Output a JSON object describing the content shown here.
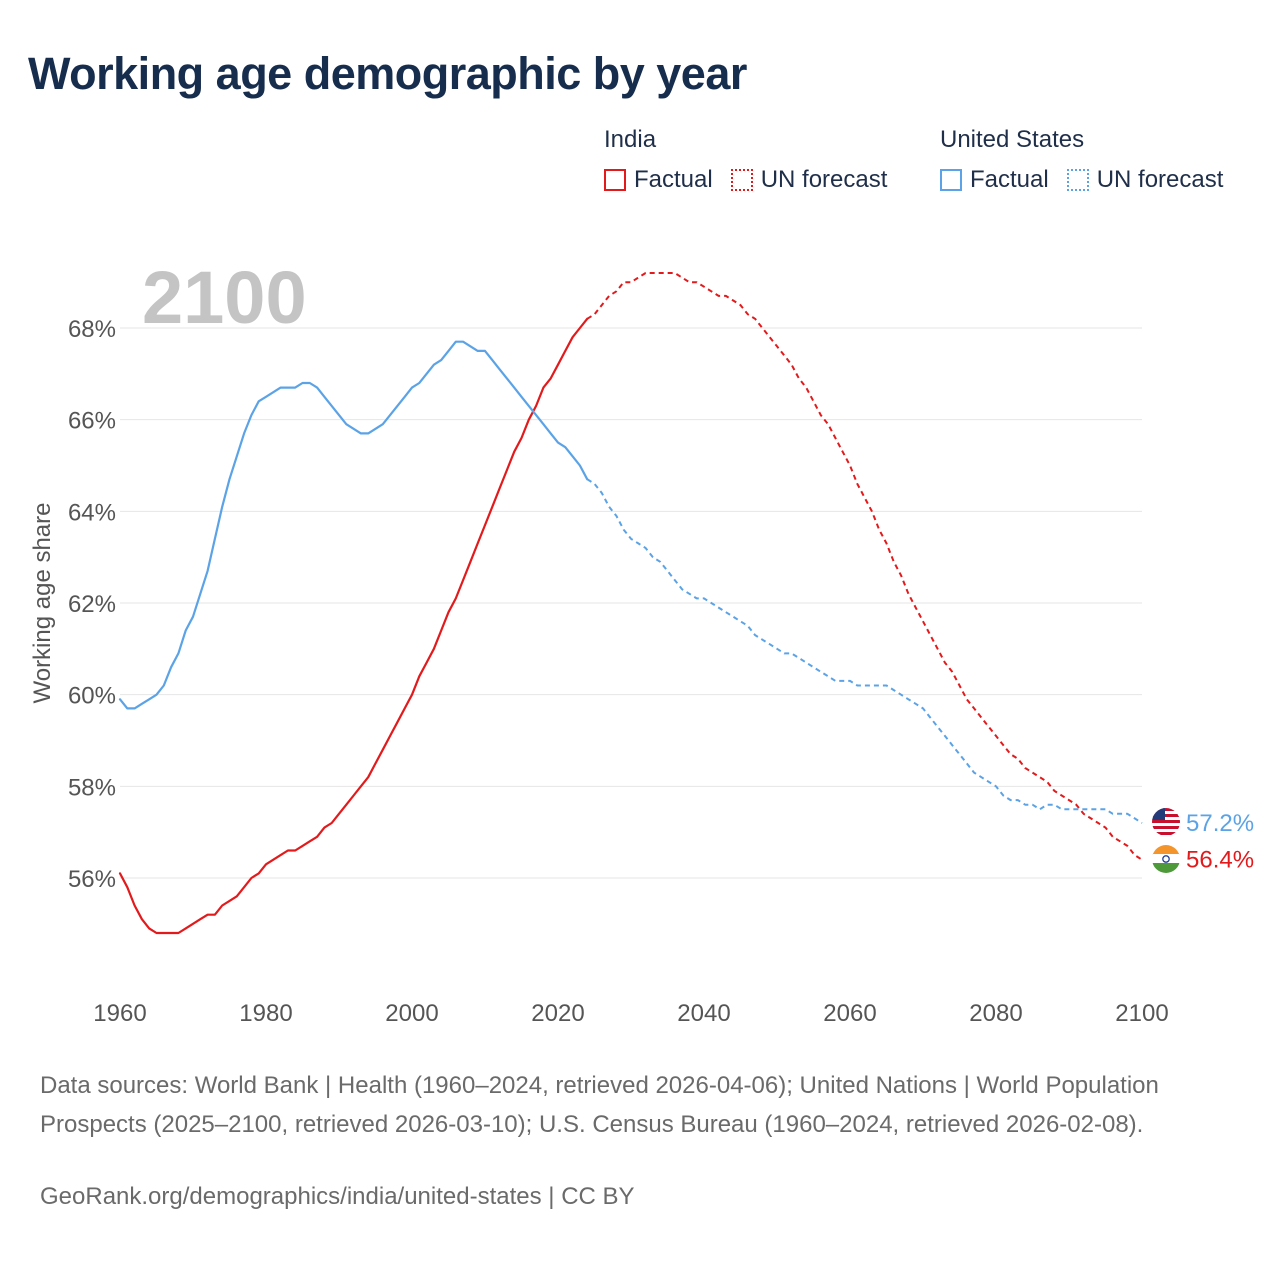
{
  "title": "Working age demographic by year",
  "legend": {
    "groups": [
      {
        "name": "India",
        "factual_label": "Factual",
        "forecast_label": "UN forecast",
        "color": "#e31a1c"
      },
      {
        "name": "United States",
        "factual_label": "Factual",
        "forecast_label": "UN forecast",
        "color": "#5ba3e6"
      }
    ]
  },
  "year_watermark": "2100",
  "colors": {
    "india": "#e31a1c",
    "usa": "#5ba3e6",
    "grid": "#e6e6e6",
    "axis_text": "#555555",
    "watermark": "#c4c4c4"
  },
  "chart_data": {
    "type": "line",
    "title": "Working age demographic by year",
    "xlabel": "",
    "ylabel": "Working age share",
    "xlim": [
      1960,
      2100
    ],
    "ylim": [
      54,
      69.5
    ],
    "x_ticks": [
      1960,
      1980,
      2000,
      2020,
      2040,
      2060,
      2080,
      2100
    ],
    "x_tick_labels": [
      "1960",
      "1980",
      "2000",
      "2020",
      "2040",
      "2060",
      "2080",
      "2100"
    ],
    "y_ticks": [
      56,
      58,
      60,
      62,
      64,
      66,
      68
    ],
    "y_tick_labels": [
      "56%",
      "58%",
      "60%",
      "62%",
      "64%",
      "66%",
      "68%"
    ],
    "forecast_start": 2024,
    "series": [
      {
        "name": "India",
        "key": "india",
        "end_label": "56.4%",
        "x": [
          1960,
          1961,
          1962,
          1963,
          1964,
          1965,
          1966,
          1967,
          1968,
          1969,
          1970,
          1971,
          1972,
          1973,
          1974,
          1975,
          1976,
          1977,
          1978,
          1979,
          1980,
          1981,
          1982,
          1983,
          1984,
          1985,
          1986,
          1987,
          1988,
          1989,
          1990,
          1991,
          1992,
          1993,
          1994,
          1995,
          1996,
          1997,
          1998,
          1999,
          2000,
          2001,
          2002,
          2003,
          2004,
          2005,
          2006,
          2007,
          2008,
          2009,
          2010,
          2011,
          2012,
          2013,
          2014,
          2015,
          2016,
          2017,
          2018,
          2019,
          2020,
          2021,
          2022,
          2023,
          2024,
          2025,
          2026,
          2027,
          2028,
          2029,
          2030,
          2031,
          2032,
          2033,
          2034,
          2035,
          2036,
          2037,
          2038,
          2039,
          2040,
          2041,
          2042,
          2043,
          2044,
          2045,
          2046,
          2047,
          2048,
          2049,
          2050,
          2051,
          2052,
          2053,
          2054,
          2055,
          2056,
          2057,
          2058,
          2059,
          2060,
          2061,
          2062,
          2063,
          2064,
          2065,
          2066,
          2067,
          2068,
          2069,
          2070,
          2071,
          2072,
          2073,
          2074,
          2075,
          2076,
          2077,
          2078,
          2079,
          2080,
          2081,
          2082,
          2083,
          2084,
          2085,
          2086,
          2087,
          2088,
          2089,
          2090,
          2091,
          2092,
          2093,
          2094,
          2095,
          2096,
          2097,
          2098,
          2099,
          2100
        ],
        "values": [
          56.1,
          55.8,
          55.4,
          55.1,
          54.9,
          54.8,
          54.8,
          54.8,
          54.8,
          54.9,
          55.0,
          55.1,
          55.2,
          55.2,
          55.4,
          55.5,
          55.6,
          55.8,
          56.0,
          56.1,
          56.3,
          56.4,
          56.5,
          56.6,
          56.6,
          56.7,
          56.8,
          56.9,
          57.1,
          57.2,
          57.4,
          57.6,
          57.8,
          58.0,
          58.2,
          58.5,
          58.8,
          59.1,
          59.4,
          59.7,
          60.0,
          60.4,
          60.7,
          61.0,
          61.4,
          61.8,
          62.1,
          62.5,
          62.9,
          63.3,
          63.7,
          64.1,
          64.5,
          64.9,
          65.3,
          65.6,
          66.0,
          66.3,
          66.7,
          66.9,
          67.2,
          67.5,
          67.8,
          68.0,
          68.2,
          68.3,
          68.5,
          68.7,
          68.8,
          69.0,
          69.0,
          69.1,
          69.2,
          69.2,
          69.2,
          69.2,
          69.2,
          69.1,
          69.0,
          69.0,
          68.9,
          68.8,
          68.7,
          68.7,
          68.6,
          68.5,
          68.3,
          68.2,
          68.0,
          67.8,
          67.6,
          67.4,
          67.2,
          66.9,
          66.7,
          66.4,
          66.1,
          65.9,
          65.6,
          65.3,
          65.0,
          64.6,
          64.3,
          64.0,
          63.6,
          63.3,
          62.9,
          62.6,
          62.2,
          61.9,
          61.6,
          61.3,
          61.0,
          60.7,
          60.5,
          60.2,
          59.9,
          59.7,
          59.5,
          59.3,
          59.1,
          58.9,
          58.7,
          58.6,
          58.4,
          58.3,
          58.2,
          58.1,
          57.9,
          57.8,
          57.7,
          57.6,
          57.4,
          57.3,
          57.2,
          57.1,
          56.9,
          56.8,
          56.7,
          56.5,
          56.4
        ]
      },
      {
        "name": "United States",
        "key": "usa",
        "end_label": "57.2%",
        "x": [
          1960,
          1961,
          1962,
          1963,
          1964,
          1965,
          1966,
          1967,
          1968,
          1969,
          1970,
          1971,
          1972,
          1973,
          1974,
          1975,
          1976,
          1977,
          1978,
          1979,
          1980,
          1981,
          1982,
          1983,
          1984,
          1985,
          1986,
          1987,
          1988,
          1989,
          1990,
          1991,
          1992,
          1993,
          1994,
          1995,
          1996,
          1997,
          1998,
          1999,
          2000,
          2001,
          2002,
          2003,
          2004,
          2005,
          2006,
          2007,
          2008,
          2009,
          2010,
          2011,
          2012,
          2013,
          2014,
          2015,
          2016,
          2017,
          2018,
          2019,
          2020,
          2021,
          2022,
          2023,
          2024,
          2025,
          2026,
          2027,
          2028,
          2029,
          2030,
          2031,
          2032,
          2033,
          2034,
          2035,
          2036,
          2037,
          2038,
          2039,
          2040,
          2041,
          2042,
          2043,
          2044,
          2045,
          2046,
          2047,
          2048,
          2049,
          2050,
          2051,
          2052,
          2053,
          2054,
          2055,
          2056,
          2057,
          2058,
          2059,
          2060,
          2061,
          2062,
          2063,
          2064,
          2065,
          2066,
          2067,
          2068,
          2069,
          2070,
          2071,
          2072,
          2073,
          2074,
          2075,
          2076,
          2077,
          2078,
          2079,
          2080,
          2081,
          2082,
          2083,
          2084,
          2085,
          2086,
          2087,
          2088,
          2089,
          2090,
          2091,
          2092,
          2093,
          2094,
          2095,
          2096,
          2097,
          2098,
          2099,
          2100
        ],
        "values": [
          59.9,
          59.7,
          59.7,
          59.8,
          59.9,
          60.0,
          60.2,
          60.6,
          60.9,
          61.4,
          61.7,
          62.2,
          62.7,
          63.4,
          64.1,
          64.7,
          65.2,
          65.7,
          66.1,
          66.4,
          66.5,
          66.6,
          66.7,
          66.7,
          66.7,
          66.8,
          66.8,
          66.7,
          66.5,
          66.3,
          66.1,
          65.9,
          65.8,
          65.7,
          65.7,
          65.8,
          65.9,
          66.1,
          66.3,
          66.5,
          66.7,
          66.8,
          67.0,
          67.2,
          67.3,
          67.5,
          67.7,
          67.7,
          67.6,
          67.5,
          67.5,
          67.3,
          67.1,
          66.9,
          66.7,
          66.5,
          66.3,
          66.1,
          65.9,
          65.7,
          65.5,
          65.4,
          65.2,
          65.0,
          64.7,
          64.6,
          64.4,
          64.1,
          63.9,
          63.6,
          63.4,
          63.3,
          63.2,
          63.0,
          62.9,
          62.7,
          62.5,
          62.3,
          62.2,
          62.1,
          62.1,
          62.0,
          61.9,
          61.8,
          61.7,
          61.6,
          61.5,
          61.3,
          61.2,
          61.1,
          61.0,
          60.9,
          60.9,
          60.8,
          60.7,
          60.6,
          60.5,
          60.4,
          60.3,
          60.3,
          60.3,
          60.2,
          60.2,
          60.2,
          60.2,
          60.2,
          60.1,
          60.0,
          59.9,
          59.8,
          59.7,
          59.5,
          59.3,
          59.1,
          58.9,
          58.7,
          58.5,
          58.3,
          58.2,
          58.1,
          58.0,
          57.8,
          57.7,
          57.7,
          57.6,
          57.6,
          57.5,
          57.6,
          57.6,
          57.5,
          57.5,
          57.5,
          57.5,
          57.5,
          57.5,
          57.5,
          57.4,
          57.4,
          57.4,
          57.3,
          57.2
        ]
      }
    ]
  },
  "footer": {
    "sources": "Data sources: World Bank | Health (1960–2024, retrieved 2026-04-06); United Nations | World Population Prospects (2025–2100, retrieved 2026-03-10); U.S. Census Bureau (1960–2024, retrieved 2026-02-08).",
    "credit": "GeoRank.org/demographics/india/united-states | CC BY"
  }
}
